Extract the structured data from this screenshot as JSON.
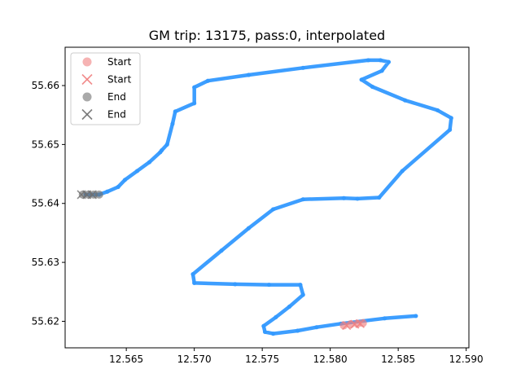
{
  "chart_data": {
    "type": "scatter",
    "title": "GM trip: 13175, pass:0, interpolated",
    "xlabel": "",
    "ylabel": "",
    "xlim": [
      12.5605,
      12.5902
    ],
    "ylim": [
      55.6155,
      55.6665
    ],
    "x_ticks": [
      12.565,
      12.57,
      12.575,
      12.58,
      12.585,
      12.59
    ],
    "x_tick_labels": [
      "12.565",
      "12.570",
      "12.575",
      "12.580",
      "12.585",
      "12.590"
    ],
    "y_ticks": [
      55.62,
      55.63,
      55.64,
      55.65,
      55.66
    ],
    "y_tick_labels": [
      "55.62",
      "55.63",
      "55.64",
      "55.65",
      "55.66"
    ],
    "grid": false,
    "legend_position": "top-left",
    "colors": {
      "trip": "#3399ff",
      "start": "#f08080",
      "end": "#707070"
    },
    "series": [
      {
        "style": "trip-points",
        "x": [
          12.5863,
          12.584,
          12.5808,
          12.579,
          12.5776,
          12.5758,
          12.5752,
          12.5751,
          12.576,
          12.577,
          12.578,
          12.5778,
          12.5755,
          12.573,
          12.57,
          12.5699,
          12.572,
          12.574,
          12.5758,
          12.578,
          12.581,
          12.582,
          12.5836,
          12.5853,
          12.5888,
          12.5889,
          12.5879,
          12.5855,
          12.5831,
          12.5823,
          12.5838,
          12.5843,
          12.5837,
          12.5828,
          12.578,
          12.574,
          12.571,
          12.57,
          12.57,
          12.5686,
          12.5684,
          12.568,
          12.5676,
          12.5675,
          12.5667,
          12.5658,
          12.5649,
          12.5644,
          12.5636,
          12.563,
          12.5625,
          12.562
        ],
        "y": [
          55.6209,
          55.6205,
          55.6196,
          55.619,
          55.6184,
          55.6179,
          55.6182,
          55.6192,
          55.6207,
          55.6225,
          55.6245,
          55.6262,
          55.6262,
          55.6263,
          55.6265,
          55.628,
          55.632,
          55.6358,
          55.639,
          55.6407,
          55.6409,
          55.6408,
          55.641,
          55.6455,
          55.6525,
          55.6545,
          55.6558,
          55.6575,
          55.6598,
          55.661,
          55.6625,
          55.664,
          55.6643,
          55.6643,
          55.663,
          55.6618,
          55.6608,
          55.6597,
          55.657,
          55.6556,
          55.6535,
          55.65,
          55.649,
          55.6487,
          55.647,
          55.6455,
          55.644,
          55.6428,
          55.642,
          55.6415,
          55.6415,
          55.6415
        ]
      },
      {
        "name": "Start",
        "style": "start-circles",
        "x": [
          12.581,
          12.5815,
          12.582,
          12.5824
        ],
        "y": [
          55.6193,
          55.6195,
          55.6196,
          55.6197
        ]
      },
      {
        "name": "Start",
        "style": "start-crosses",
        "x": [
          12.5812,
          12.5818,
          12.5822
        ],
        "y": [
          55.6193,
          55.6195,
          55.6196
        ]
      },
      {
        "name": "End",
        "style": "end-circles",
        "x": [
          12.5618,
          12.5622,
          12.5626,
          12.563
        ],
        "y": [
          55.6415,
          55.6415,
          55.6415,
          55.6415
        ]
      },
      {
        "name": "End",
        "style": "end-crosses",
        "x": [
          12.5617,
          12.5621,
          12.5625
        ],
        "y": [
          55.6415,
          55.6415,
          55.6415
        ]
      }
    ],
    "legend": [
      {
        "label": "Start",
        "marker": "circle",
        "color": "#f08080"
      },
      {
        "label": "Start",
        "marker": "x",
        "color": "#f08080"
      },
      {
        "label": "End",
        "marker": "circle",
        "color": "#707070"
      },
      {
        "label": "End",
        "marker": "x",
        "color": "#707070"
      }
    ]
  }
}
